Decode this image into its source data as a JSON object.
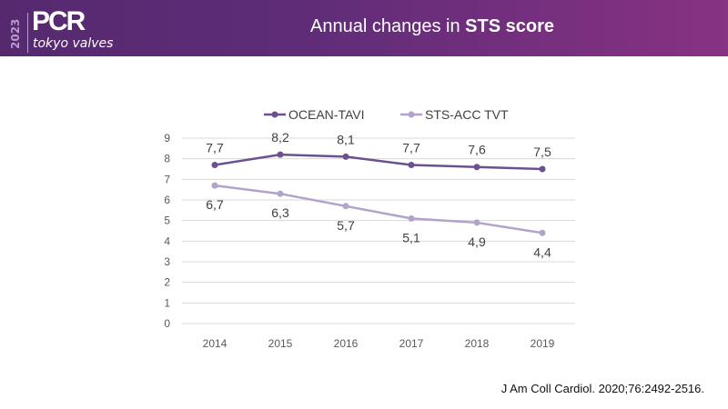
{
  "header": {
    "logo_year": "2023",
    "logo_name": "PCR",
    "logo_subtitle": "tokyo valves",
    "title_plain": "Annual changes in ",
    "title_bold": "STS score"
  },
  "colors": {
    "header_start": "#56296f",
    "header_end": "#873282",
    "ocean_tavi": "#6b5190",
    "sts_acc_tvt": "#b1a3cb"
  },
  "chart_data": {
    "type": "line",
    "title": "",
    "xlabel": "",
    "ylabel": "",
    "categories": [
      "2014",
      "2015",
      "2016",
      "2017",
      "2018",
      "2019"
    ],
    "ylim": [
      0,
      9
    ],
    "yticks": [
      "0",
      "1",
      "2",
      "3",
      "4",
      "5",
      "6",
      "7",
      "8",
      "9"
    ],
    "grid": true,
    "legend": "top",
    "series": [
      {
        "name": "OCEAN-TAVI",
        "values": [
          7.7,
          8.2,
          8.1,
          7.7,
          7.6,
          7.5
        ],
        "labels": [
          "7,7",
          "8,2",
          "8,1",
          "7,7",
          "7,6",
          "7,5"
        ],
        "label_position": "above"
      },
      {
        "name": "STS-ACC TVT",
        "values": [
          6.7,
          6.3,
          5.7,
          5.1,
          4.9,
          4.4
        ],
        "labels": [
          "6,7",
          "6,3",
          "5,7",
          "5,1",
          "4,9",
          "4,4"
        ],
        "label_position": "below"
      }
    ]
  },
  "citation": "J Am Coll Cardiol. 2020;76:2492-2516."
}
